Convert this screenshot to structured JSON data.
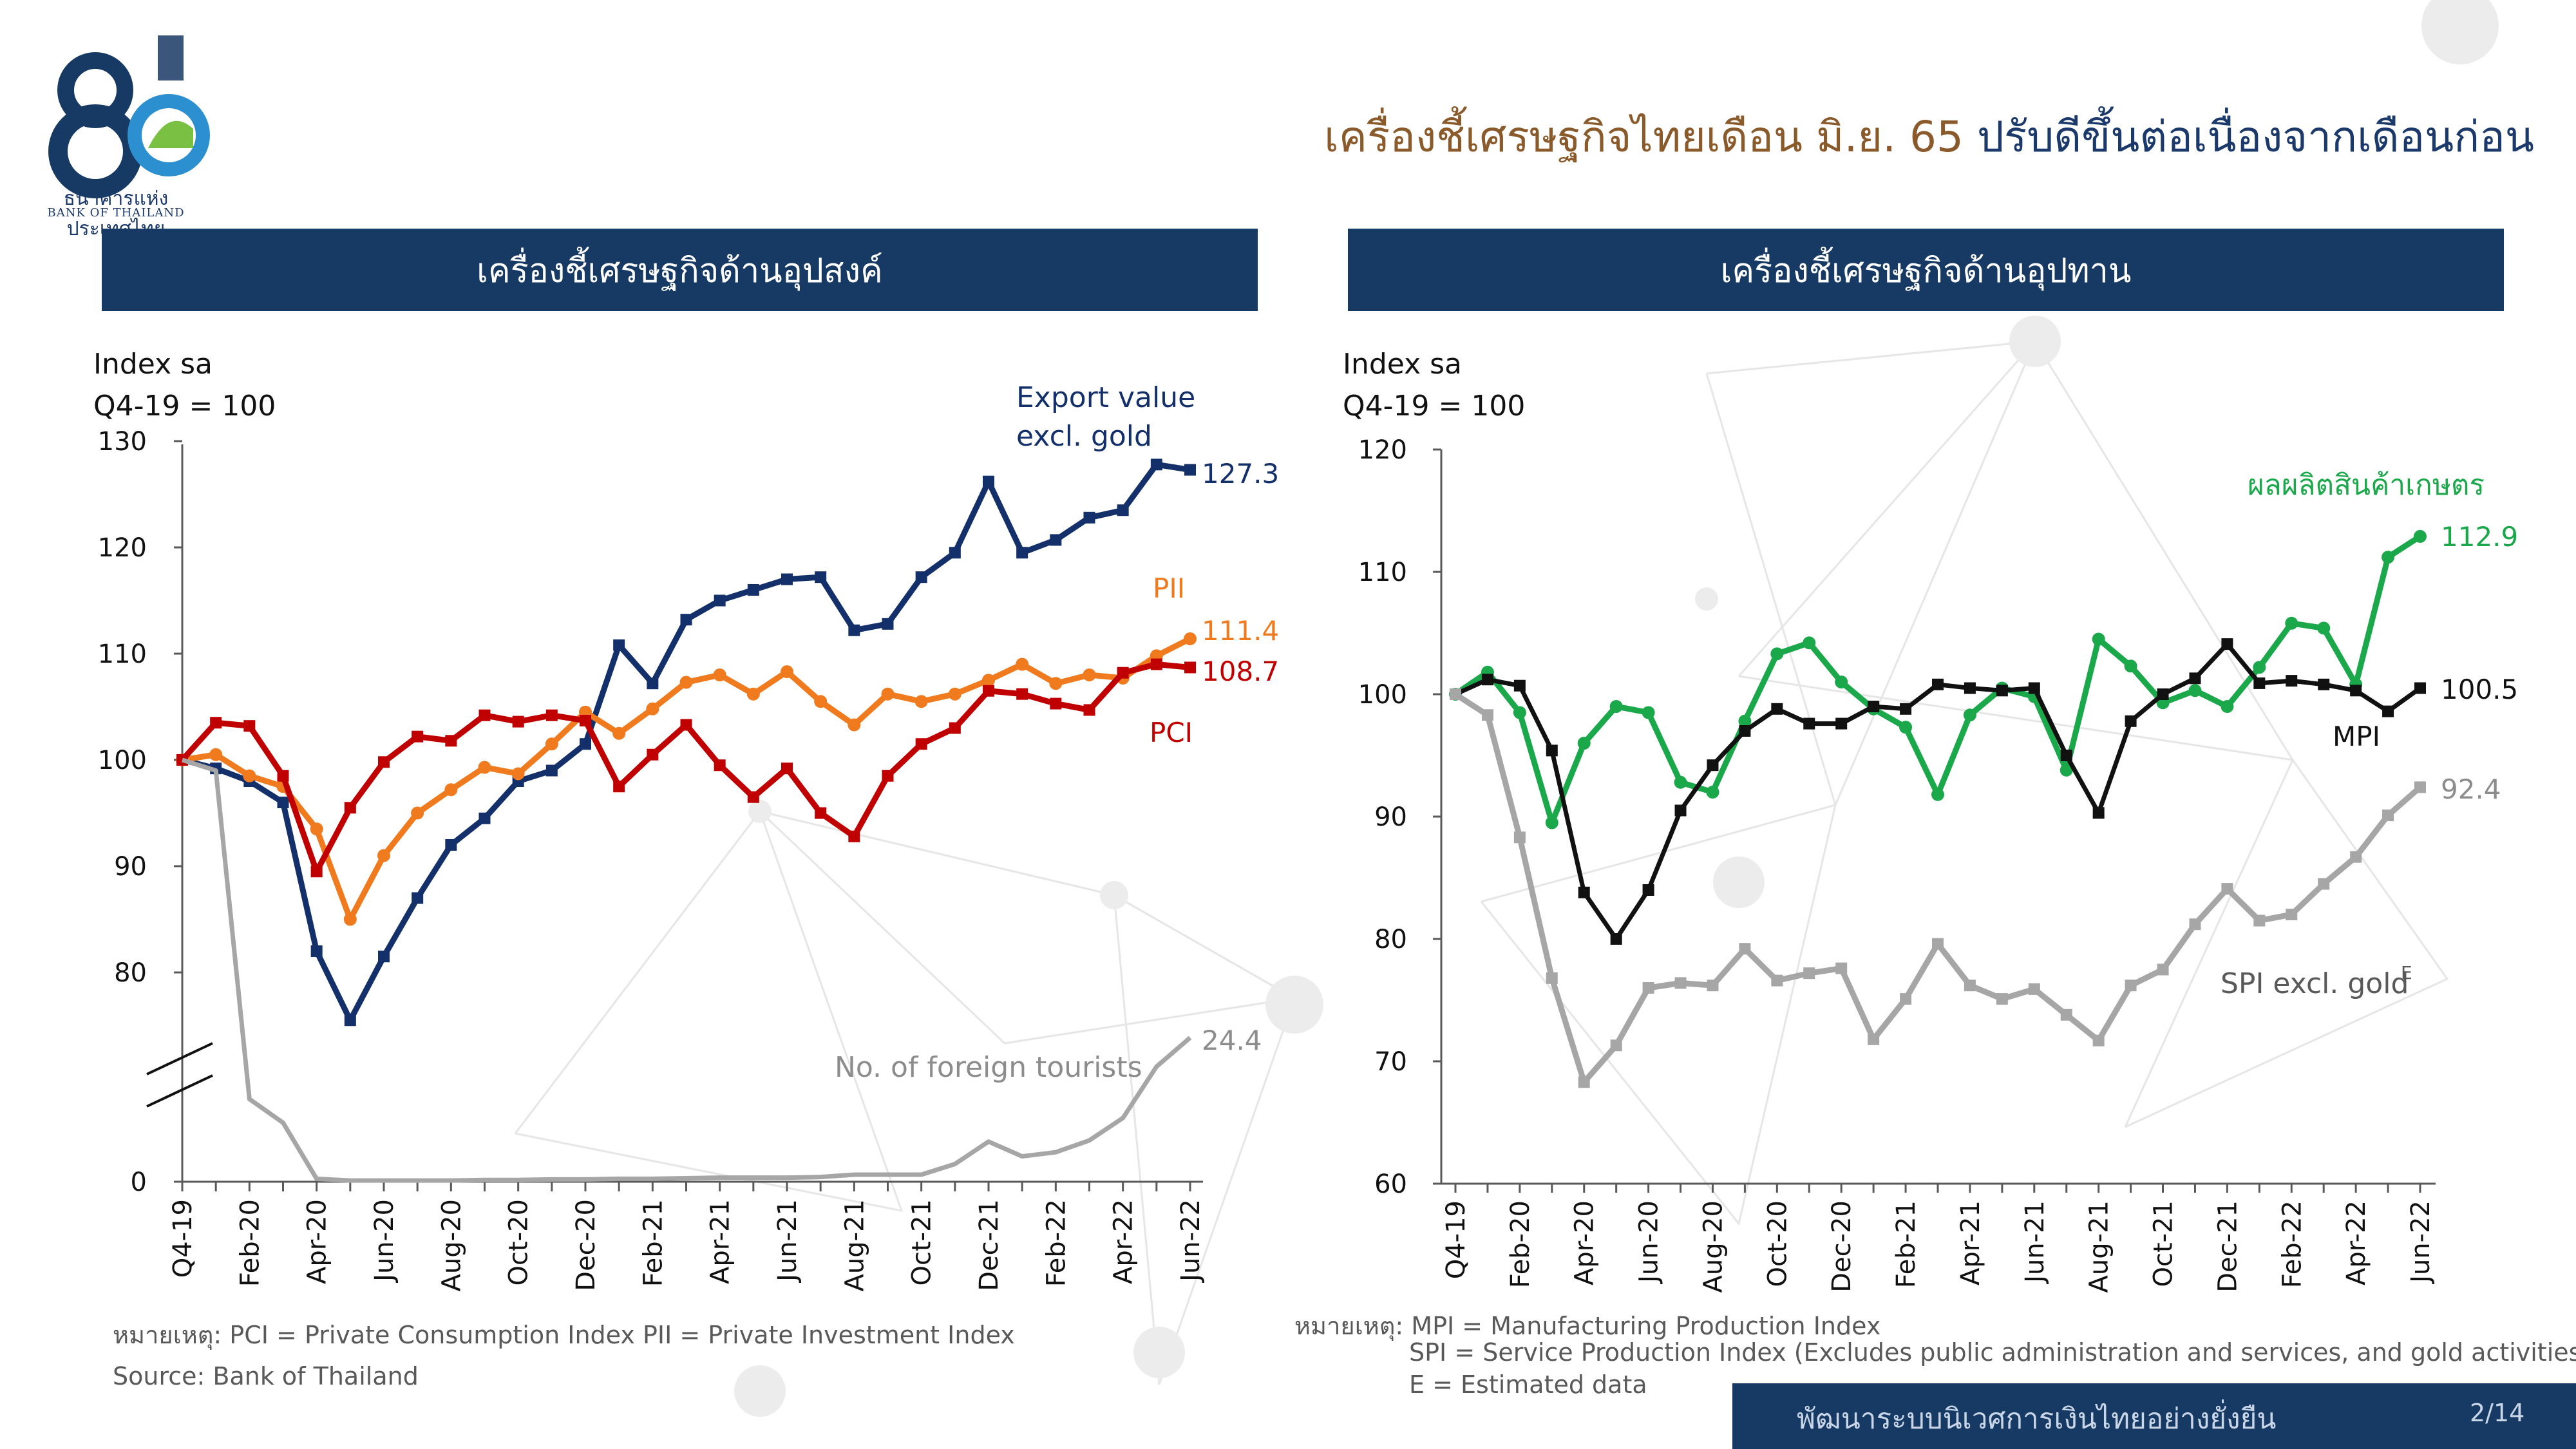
{
  "header": {
    "logo_text_th": "ธนาคารแห่งประเทศไทย",
    "logo_text_en": "BANK OF THAILAND",
    "headline_part1": "เครื่องชี้เศรษฐกิจไทยเดือน มิ.ย. 65",
    "headline_part2": "ปรับดีขึ้นต่อเนื่องจากเดือนก่อน"
  },
  "panels": {
    "left_title": "เครื่องชี้เศรษฐกิจด้านอุปสงค์",
    "right_title": "เครื่องชี้เศรษฐกิจด้านอุปทาน"
  },
  "notes": {
    "left_remark": "หมายเหตุ: PCI = Private Consumption Index    PII = Private Investment Index",
    "left_source": "Source: Bank of Thailand",
    "right_remark_1": "หมายเหตุ: MPI = Manufacturing Production Index",
    "right_remark_2": "SPI = Service Production Index (Excludes public administration and services, and gold activities)",
    "right_remark_3": "E = Estimated data"
  },
  "footer": {
    "text": "พัฒนาระบบนิเวศการเงินไทยอย่างยั่งยืน",
    "page": "2/14"
  },
  "colors": {
    "navy": "#14306a",
    "orange": "#f07a1e",
    "red": "#c00000",
    "gray": "#a6a6a6",
    "green": "#1aa84b",
    "black": "#111111",
    "brown": "#8a5a2b",
    "banner": "#173a64"
  },
  "chart_data": [
    {
      "type": "line",
      "ylabel_line1": "Index sa",
      "ylabel_line2": "Q4-19 = 100",
      "ylim": [
        0,
        130
      ],
      "y_axis_break": true,
      "y_ticks": [
        "0",
        "80",
        "90",
        "100",
        "110",
        "120",
        "130"
      ],
      "x_tick_labels": [
        "Q4-19",
        "Feb-20",
        "Apr-20",
        "Jun-20",
        "Aug-20",
        "Oct-20",
        "Dec-20",
        "Feb-21",
        "Apr-21",
        "Jun-21",
        "Aug-21",
        "Oct-21",
        "Dec-21",
        "Feb-22",
        "Apr-22",
        "Jun-22"
      ],
      "series": [
        {
          "name": "Export value excl. gold",
          "label_line1": "Export value",
          "label_line2": "excl. gold",
          "end_label": "127.3",
          "color": "#14306a",
          "marker": "square",
          "values": [
            100,
            99.2,
            98,
            96,
            82,
            75.5,
            81.5,
            87,
            92,
            94.5,
            98,
            99,
            101.5,
            110.8,
            107.2,
            113.2,
            115,
            116,
            117,
            117.2,
            112.2,
            112.8,
            117.2,
            119.5,
            126.2,
            119.5,
            120.7,
            122.8,
            123.5,
            127.8,
            127.3
          ]
        },
        {
          "name": "PII",
          "end_label": "111.4",
          "color": "#f07a1e",
          "marker": "circle",
          "values": [
            100,
            100.5,
            98.5,
            97.5,
            93.5,
            85,
            91,
            95,
            97.2,
            99.3,
            98.7,
            101.5,
            104.5,
            102.5,
            104.8,
            107.3,
            108,
            106.2,
            108.3,
            105.5,
            103.3,
            106.2,
            105.5,
            106.2,
            107.5,
            109,
            107.2,
            108,
            107.7,
            109.8,
            111.4
          ]
        },
        {
          "name": "PCI",
          "end_label": "108.7",
          "color": "#c00000",
          "marker": "square",
          "values": [
            100,
            103.5,
            103.2,
            98.5,
            89.5,
            95.5,
            99.8,
            102.2,
            101.8,
            104.2,
            103.6,
            104.2,
            103.7,
            97.5,
            100.5,
            103.3,
            99.5,
            96.5,
            99.2,
            95,
            92.8,
            98.5,
            101.5,
            103,
            106.5,
            106.2,
            105.3,
            104.7,
            108.2,
            109,
            108.7
          ]
        },
        {
          "name": "No. of foreign tourists",
          "end_label": "24.4",
          "color": "#a6a6a6",
          "marker": "none",
          "values": [
            100,
            99,
            20,
            10,
            0.5,
            0.2,
            0.2,
            0.2,
            0.2,
            0.3,
            0.3,
            0.4,
            0.4,
            0.5,
            0.5,
            0.6,
            0.7,
            0.7,
            0.7,
            0.8,
            1.2,
            1.2,
            1.2,
            3,
            6.8,
            4.3,
            5,
            7,
            10.8,
            19.5,
            24.4
          ]
        }
      ]
    },
    {
      "type": "line",
      "ylabel_line1": "Index sa",
      "ylabel_line2": "Q4-19 = 100",
      "ylim": [
        60,
        120
      ],
      "y_ticks": [
        "60",
        "70",
        "80",
        "90",
        "100",
        "110",
        "120"
      ],
      "x_tick_labels": [
        "Q4-19",
        "Feb-20",
        "Apr-20",
        "Jun-20",
        "Aug-20",
        "Oct-20",
        "Dec-20",
        "Feb-21",
        "Apr-21",
        "Jun-21",
        "Aug-21",
        "Oct-21",
        "Dec-21",
        "Feb-22",
        "Apr-22",
        "Jun-22"
      ],
      "series": [
        {
          "name": "ผลผลิตสินค้าเกษตร",
          "end_label": "112.9",
          "color": "#1aa84b",
          "marker": "circle",
          "values": [
            100,
            101.8,
            98.5,
            89.5,
            96,
            99,
            98.5,
            92.8,
            92,
            97.8,
            103.3,
            104.2,
            101,
            98.8,
            97.3,
            91.8,
            98.3,
            100.5,
            99.8,
            93.8,
            104.5,
            102.3,
            99.3,
            100.3,
            99.0,
            102.2,
            105.8,
            105.4,
            100.8,
            111.2,
            112.9
          ]
        },
        {
          "name": "MPI",
          "end_label": "100.5",
          "color": "#111111",
          "marker": "square",
          "values": [
            100,
            101.2,
            100.7,
            95.4,
            83.8,
            80,
            84,
            90.5,
            94.2,
            97,
            98.8,
            97.6,
            97.6,
            99,
            98.8,
            100.8,
            100.5,
            100.3,
            100.5,
            95,
            90.3,
            97.8,
            100,
            101.3,
            104.1,
            100.9,
            101.1,
            100.8,
            100.3,
            98.6,
            100.5
          ]
        },
        {
          "name": "SPI excl. gold",
          "name_sup": "E",
          "end_label": "92.4",
          "color": "#a6a6a6",
          "marker": "square",
          "values": [
            100,
            98.3,
            88.3,
            76.8,
            68.3,
            71.3,
            76,
            76.4,
            76.2,
            79.2,
            76.6,
            77.2,
            77.6,
            71.8,
            75.1,
            79.6,
            76.2,
            75.1,
            75.9,
            73.8,
            71.7,
            76.2,
            77.5,
            81.2,
            84.1,
            81.5,
            82,
            84.5,
            86.7,
            90.1,
            92.4
          ]
        }
      ]
    }
  ]
}
